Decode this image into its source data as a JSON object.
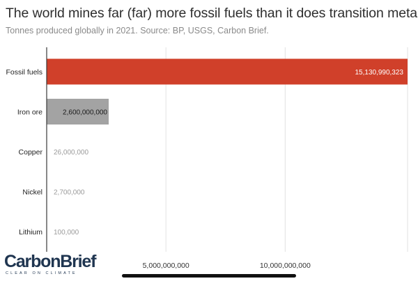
{
  "chart_data": {
    "type": "bar",
    "orientation": "horizontal",
    "title": "The world mines far (far) more fossil fuels than it does transition metals",
    "subtitle": "Tonnes produced globally in 2021. Source: BP, USGS, Carbon Brief.",
    "categories": [
      "Fossil fuels",
      "Iron ore",
      "Copper",
      "Nickel",
      "Lithium"
    ],
    "values": [
      15130990323,
      2600000000,
      26000000,
      2700000,
      100000
    ],
    "value_labels": [
      "15,130,990,323",
      "2,600,000,000",
      "26,000,000",
      "2,700,000",
      "100,000"
    ],
    "bar_colors": [
      "#d0402a",
      "#a3a3a3",
      "#a3a3a3",
      "#a3a3a3",
      "#a3a3a3"
    ],
    "xlim": [
      0,
      15130990323
    ],
    "x_ticks": [
      5000000000,
      10000000000
    ],
    "x_tick_labels": [
      "5,000,000,000",
      "10,000,000,000"
    ],
    "grid": true
  },
  "brand": {
    "name": "CarbonBrief",
    "tagline": "CLEAR ON CLIMATE",
    "color": "#1f3550"
  }
}
